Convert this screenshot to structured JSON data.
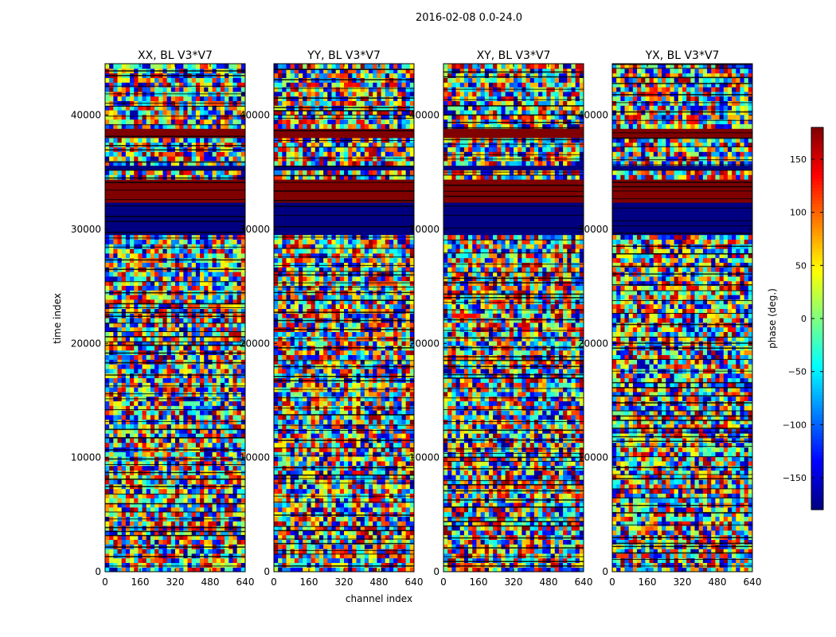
{
  "figure": {
    "suptitle": "2016-02-08 0.0-24.0"
  },
  "chart_data": {
    "type": "heatmap",
    "title": "2016-02-08 0.0-24.0",
    "xlabel": "channel index",
    "ylabel": "time index",
    "xlim": [
      0,
      640
    ],
    "ylim": [
      0,
      44500
    ],
    "x_ticks": [
      0,
      160,
      320,
      480,
      640
    ],
    "y_ticks": [
      0,
      10000,
      20000,
      30000,
      40000
    ],
    "panels": [
      {
        "name": "XX",
        "title": "XX, BL V3*V7"
      },
      {
        "name": "YY",
        "title": "YY, BL V3*V7"
      },
      {
        "name": "XY",
        "title": "XY, BL V3*V7"
      },
      {
        "name": "YX",
        "title": "YX, BL V3*V7"
      }
    ],
    "colorbar": {
      "label": "phase (deg.)",
      "range": [
        -180,
        180
      ],
      "ticks": [
        -150,
        -100,
        -50,
        0,
        50,
        100,
        150
      ],
      "tick_labels": [
        "−150",
        "−100",
        "−50",
        "0",
        "50",
        "100",
        "150"
      ],
      "colormap": "jet"
    },
    "bands": [
      {
        "t0": 29500,
        "t1": 32300,
        "phase": -180,
        "label": "saturated -180"
      },
      {
        "t0": 32300,
        "t1": 34500,
        "phase": 180,
        "label": "saturated 180"
      },
      {
        "t0": 35000,
        "t1": 35800,
        "phase": -180,
        "label": "saturated -180"
      },
      {
        "t0": 38200,
        "t1": 38700,
        "phase": 180,
        "label": "saturated 180"
      }
    ]
  }
}
